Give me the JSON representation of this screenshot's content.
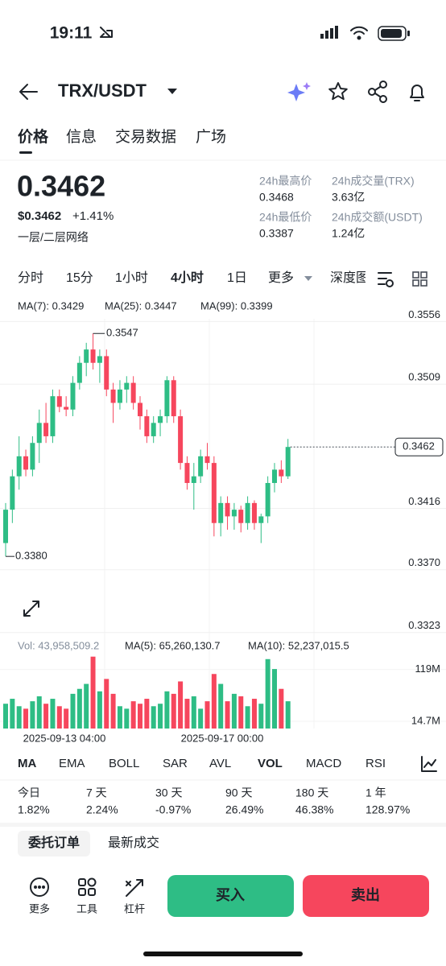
{
  "status_bar": {
    "time": "19:11"
  },
  "header": {
    "pair": "TRX/USDT"
  },
  "tabs": [
    "价格",
    "信息",
    "交易数据",
    "广场"
  ],
  "price": {
    "last": "0.3462",
    "usd": "$0.3462",
    "change": "+1.41%",
    "tag": "一层/二层网络"
  },
  "stats": [
    {
      "label": "24h最高价",
      "value": "0.3468"
    },
    {
      "label": "24h成交量(TRX)",
      "value": "3.63亿"
    },
    {
      "label": "24h最低价",
      "value": "0.3387"
    },
    {
      "label": "24h成交额(USDT)",
      "value": "1.24亿"
    }
  ],
  "intervals": [
    "分时",
    "15分",
    "1小时",
    "4小时",
    "1日",
    "更多",
    "深度图"
  ],
  "ma_legend": [
    "MA(7): 0.3429",
    "MA(25): 0.3447",
    "MA(99): 0.3399"
  ],
  "vol_legend": [
    "Vol: 43,958,509.2",
    "MA(5): 65,260,130.7",
    "MA(10): 52,237,015.5"
  ],
  "x_labels": [
    "2025-09-13 04:00",
    "2025-09-17 00:00"
  ],
  "indicators": [
    "MA",
    "EMA",
    "BOLL",
    "SAR",
    "AVL",
    "VOL",
    "MACD",
    "RSI"
  ],
  "performance": [
    {
      "period": "今日",
      "value": "1.82%"
    },
    {
      "period": "7 天",
      "value": "2.24%"
    },
    {
      "period": "30 天",
      "value": "-0.97%"
    },
    {
      "period": "90 天",
      "value": "26.49%"
    },
    {
      "period": "180 天",
      "value": "46.38%"
    },
    {
      "period": "1 年",
      "value": "128.97%"
    }
  ],
  "order_tabs": [
    "委托订单",
    "最新成交"
  ],
  "actions": [
    "更多",
    "工具",
    "杠杆"
  ],
  "buttons": [
    "买入",
    "卖出"
  ],
  "chart_data": {
    "type": "candlestick",
    "ylim": [
      0.3318,
      0.3558
    ],
    "yticks": [
      0.3556,
      0.3509,
      0.3416,
      {
        "value": 0.337,
        "label": "0.3370"
      },
      0.3323
    ],
    "up_color": "#2ebd85",
    "down_color": "#f6465d",
    "ohlc": [
      [
        0.339,
        0.342,
        0.338,
        0.3415
      ],
      [
        0.3415,
        0.3445,
        0.3405,
        0.344
      ],
      [
        0.344,
        0.347,
        0.343,
        0.3455
      ],
      [
        0.3455,
        0.346,
        0.344,
        0.3445
      ],
      [
        0.3445,
        0.347,
        0.344,
        0.3465
      ],
      [
        0.3465,
        0.349,
        0.345,
        0.348
      ],
      [
        0.348,
        0.3495,
        0.3465,
        0.347
      ],
      [
        0.347,
        0.3505,
        0.3465,
        0.35
      ],
      [
        0.35,
        0.3505,
        0.3488,
        0.3492
      ],
      [
        0.3492,
        0.35,
        0.3485,
        0.349
      ],
      [
        0.349,
        0.3515,
        0.3485,
        0.351
      ],
      [
        0.351,
        0.353,
        0.3505,
        0.3525
      ],
      [
        0.3525,
        0.354,
        0.3515,
        0.3535
      ],
      [
        0.3535,
        0.3547,
        0.352,
        0.3525
      ],
      [
        0.3525,
        0.3535,
        0.351,
        0.353
      ],
      [
        0.353,
        0.3535,
        0.35,
        0.3505
      ],
      [
        0.3505,
        0.351,
        0.348,
        0.3495
      ],
      [
        0.3495,
        0.3512,
        0.349,
        0.3505
      ],
      [
        0.3505,
        0.3515,
        0.3495,
        0.351
      ],
      [
        0.351,
        0.3515,
        0.349,
        0.3495
      ],
      [
        0.3495,
        0.35,
        0.3475,
        0.3485
      ],
      [
        0.3485,
        0.349,
        0.3465,
        0.347
      ],
      [
        0.347,
        0.3485,
        0.3465,
        0.348
      ],
      [
        0.348,
        0.349,
        0.347,
        0.3485
      ],
      [
        0.3485,
        0.3515,
        0.348,
        0.3512
      ],
      [
        0.3512,
        0.3515,
        0.348,
        0.3485
      ],
      [
        0.3485,
        0.349,
        0.3445,
        0.345
      ],
      [
        0.345,
        0.3455,
        0.343,
        0.3435
      ],
      [
        0.3435,
        0.345,
        0.3415,
        0.344
      ],
      [
        0.344,
        0.346,
        0.3435,
        0.3455
      ],
      [
        0.3455,
        0.3465,
        0.3445,
        0.345
      ],
      [
        0.345,
        0.3455,
        0.3395,
        0.3405
      ],
      [
        0.3405,
        0.3425,
        0.3395,
        0.342
      ],
      [
        0.342,
        0.3425,
        0.34,
        0.341
      ],
      [
        0.341,
        0.342,
        0.34,
        0.3415
      ],
      [
        0.3415,
        0.3418,
        0.3398,
        0.3405
      ],
      [
        0.3405,
        0.3425,
        0.34,
        0.342
      ],
      [
        0.342,
        0.3422,
        0.34,
        0.3405
      ],
      [
        0.3405,
        0.3412,
        0.339,
        0.341
      ],
      [
        0.341,
        0.344,
        0.3405,
        0.3435
      ],
      [
        0.3435,
        0.345,
        0.3428,
        0.3445
      ],
      [
        0.3445,
        0.3452,
        0.3435,
        0.344
      ],
      [
        0.344,
        0.3468,
        0.3438,
        0.3462
      ]
    ],
    "last_price": 0.3462,
    "high_label": 0.3547,
    "low_label": {
      "value": 0.338,
      "label": "0.3380"
    },
    "volume": {
      "ylim": [
        0,
        151
      ],
      "yticks": [
        {
          "value": 119,
          "label": "119M"
        },
        {
          "value": 14.7,
          "label": "14.7M"
        }
      ],
      "values": [
        50,
        60,
        45,
        40,
        55,
        65,
        50,
        60,
        45,
        40,
        70,
        80,
        90,
        145,
        75,
        100,
        70,
        45,
        40,
        55,
        50,
        60,
        45,
        50,
        75,
        70,
        95,
        60,
        65,
        40,
        55,
        110,
        90,
        55,
        70,
        65,
        45,
        60,
        50,
        140,
        120,
        80,
        55
      ]
    }
  }
}
